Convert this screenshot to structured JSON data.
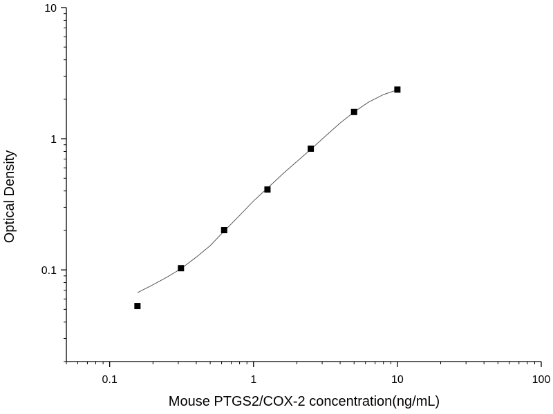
{
  "chart_data": {
    "type": "scatter",
    "title": "",
    "xlabel": "Mouse PTGS2/COX-2 concentration(ng/mL)",
    "ylabel": "Optical Density",
    "xscale": "log",
    "yscale": "log",
    "xlim": [
      0.05,
      100
    ],
    "ylim": [
      0.02,
      10
    ],
    "x_ticks": [
      {
        "value": 0.1,
        "label": "0.1"
      },
      {
        "value": 1,
        "label": "1"
      },
      {
        "value": 10,
        "label": "10"
      },
      {
        "value": 100,
        "label": "100"
      }
    ],
    "y_ticks": [
      {
        "value": 0.1,
        "label": "0.1"
      },
      {
        "value": 1,
        "label": "1"
      },
      {
        "value": 10,
        "label": "10"
      }
    ],
    "grid": false,
    "legend": "none",
    "series": [
      {
        "marker": "square",
        "color": "#000000",
        "points": [
          {
            "x": 0.156,
            "y": 0.053
          },
          {
            "x": 0.313,
            "y": 0.103
          },
          {
            "x": 0.625,
            "y": 0.201
          },
          {
            "x": 1.25,
            "y": 0.41
          },
          {
            "x": 2.5,
            "y": 0.84
          },
          {
            "x": 5,
            "y": 1.6
          },
          {
            "x": 10,
            "y": 2.37
          }
        ]
      }
    ],
    "fit_curve": {
      "color": "#555555",
      "points": [
        {
          "x": 0.156,
          "y": 0.067
        },
        {
          "x": 0.2,
          "y": 0.077
        },
        {
          "x": 0.25,
          "y": 0.088
        },
        {
          "x": 0.313,
          "y": 0.102
        },
        {
          "x": 0.4,
          "y": 0.125
        },
        {
          "x": 0.5,
          "y": 0.153
        },
        {
          "x": 0.625,
          "y": 0.198
        },
        {
          "x": 0.8,
          "y": 0.26
        },
        {
          "x": 1,
          "y": 0.335
        },
        {
          "x": 1.25,
          "y": 0.42
        },
        {
          "x": 1.6,
          "y": 0.54
        },
        {
          "x": 2,
          "y": 0.67
        },
        {
          "x": 2.5,
          "y": 0.83
        },
        {
          "x": 3.2,
          "y": 1.06
        },
        {
          "x": 4,
          "y": 1.32
        },
        {
          "x": 5,
          "y": 1.6
        },
        {
          "x": 6.3,
          "y": 1.9
        },
        {
          "x": 8,
          "y": 2.17
        },
        {
          "x": 10,
          "y": 2.36
        }
      ]
    }
  }
}
